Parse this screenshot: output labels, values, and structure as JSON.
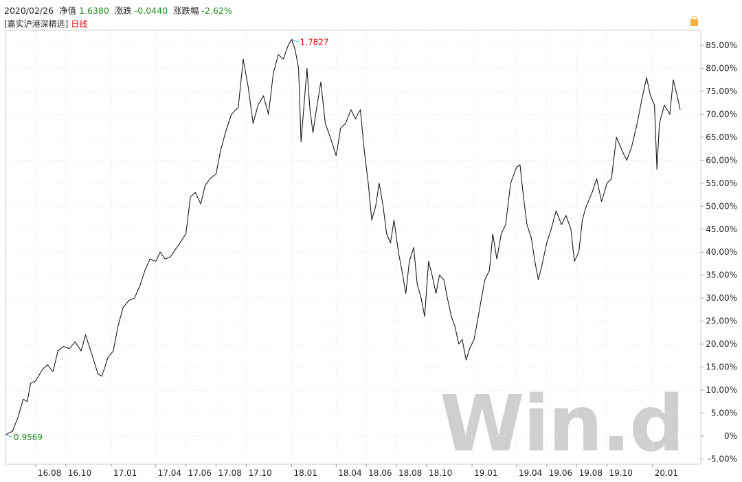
{
  "header": {
    "date": "2020/02/26",
    "nav_label": "净值",
    "nav_value": "1.6380",
    "change_label": "涨跌",
    "change_value": "-0.0440",
    "pct_label": "涨跌幅",
    "pct_value": "-2.62%"
  },
  "subheader": {
    "fund_name": "[嘉实沪港深精选]",
    "period": "日线"
  },
  "watermark": "Win.d",
  "colors": {
    "line": "#1a1a1a",
    "grid": "#e6e6e6",
    "green": "#1a8a1a",
    "red": "#e0000a"
  },
  "icons": {
    "lock": "lock-icon"
  },
  "chart_data": {
    "type": "line",
    "ylim": [
      -5,
      90
    ],
    "yticks": [
      -5,
      0,
      5,
      10,
      15,
      20,
      25,
      30,
      35,
      40,
      45,
      50,
      55,
      60,
      65,
      70,
      75,
      80,
      85
    ],
    "ytick_labels": [
      "-5.00%",
      "0%",
      "5.00%",
      "10.00%",
      "15.00%",
      "20.00%",
      "25.00%",
      "30.00%",
      "35.00%",
      "40.00%",
      "45.00%",
      "50.00%",
      "55.00%",
      "60.00%",
      "65.00%",
      "70.00%",
      "75.00%",
      "80.00%",
      "85.00%"
    ],
    "xtick_labels": [
      "16.08",
      "16.10",
      "17.01",
      "17.04",
      "17.06",
      "17.08",
      "17.10",
      "18.01",
      "18.04",
      "18.06",
      "18.08",
      "18.10",
      "19.01",
      "19.04",
      "19.06",
      "19.08",
      "19.10",
      "20.01"
    ],
    "xtick_dates": [
      "2016-08-01",
      "2016-10-01",
      "2017-01-01",
      "2017-04-01",
      "2017-06-01",
      "2017-08-01",
      "2017-10-01",
      "2018-01-01",
      "2018-04-01",
      "2018-06-01",
      "2018-08-01",
      "2018-10-01",
      "2019-01-01",
      "2019-04-01",
      "2019-06-01",
      "2019-08-01",
      "2019-10-01",
      "2020-01-01"
    ],
    "annotations": [
      {
        "label": "1.7827",
        "date": "2018-01-01",
        "value": 86.3,
        "color": "#e0000a"
      },
      {
        "label": "0.9569",
        "date": "2016-06-01",
        "value": 0.3,
        "color": "#1a8a1a"
      }
    ],
    "series": [
      {
        "points": [
          [
            "2016-06-01",
            0.3
          ],
          [
            "2016-06-15",
            1.0
          ],
          [
            "2016-06-26",
            4.0
          ],
          [
            "2016-07-07",
            8.0
          ],
          [
            "2016-07-15",
            7.5
          ],
          [
            "2016-07-22",
            11.5
          ],
          [
            "2016-08-01",
            12.0
          ],
          [
            "2016-08-15",
            14.5
          ],
          [
            "2016-08-25",
            15.5
          ],
          [
            "2016-09-05",
            14.0
          ],
          [
            "2016-09-15",
            18.5
          ],
          [
            "2016-09-26",
            19.5
          ],
          [
            "2016-10-08",
            19.0
          ],
          [
            "2016-10-20",
            20.5
          ],
          [
            "2016-11-01",
            18.5
          ],
          [
            "2016-11-10",
            22.0
          ],
          [
            "2016-11-25",
            17.0
          ],
          [
            "2016-12-05",
            13.5
          ],
          [
            "2016-12-13",
            13.0
          ],
          [
            "2016-12-25",
            17.0
          ],
          [
            "2017-01-05",
            18.5
          ],
          [
            "2017-01-15",
            24.0
          ],
          [
            "2017-01-25",
            28.0
          ],
          [
            "2017-02-06",
            29.5
          ],
          [
            "2017-02-17",
            30.0
          ],
          [
            "2017-03-01",
            33.0
          ],
          [
            "2017-03-10",
            36.0
          ],
          [
            "2017-03-20",
            38.5
          ],
          [
            "2017-04-01",
            38.0
          ],
          [
            "2017-04-10",
            40.0
          ],
          [
            "2017-04-20",
            38.5
          ],
          [
            "2017-05-01",
            39.0
          ],
          [
            "2017-05-10",
            40.5
          ],
          [
            "2017-05-20",
            42.0
          ],
          [
            "2017-06-01",
            44.0
          ],
          [
            "2017-06-10",
            52.0
          ],
          [
            "2017-06-20",
            53.0
          ],
          [
            "2017-07-01",
            50.5
          ],
          [
            "2017-07-10",
            54.5
          ],
          [
            "2017-07-20",
            56.0
          ],
          [
            "2017-08-01",
            57.0
          ],
          [
            "2017-08-10",
            62.0
          ],
          [
            "2017-08-20",
            66.0
          ],
          [
            "2017-09-01",
            70.0
          ],
          [
            "2017-09-15",
            71.5
          ],
          [
            "2017-09-25",
            82.0
          ],
          [
            "2017-10-05",
            76.0
          ],
          [
            "2017-10-15",
            68.0
          ],
          [
            "2017-10-25",
            72.0
          ],
          [
            "2017-11-05",
            74.0
          ],
          [
            "2017-11-15",
            70.0
          ],
          [
            "2017-11-25",
            79.0
          ],
          [
            "2017-12-05",
            83.0
          ],
          [
            "2017-12-15",
            82.0
          ],
          [
            "2017-12-25",
            85.0
          ],
          [
            "2018-01-01",
            86.3
          ],
          [
            "2018-01-08",
            84.0
          ],
          [
            "2018-01-15",
            80.0
          ],
          [
            "2018-01-20",
            64.0
          ],
          [
            "2018-01-26",
            72.0
          ],
          [
            "2018-02-01",
            80.0
          ],
          [
            "2018-02-07",
            71.0
          ],
          [
            "2018-02-13",
            66.0
          ],
          [
            "2018-02-20",
            71.0
          ],
          [
            "2018-03-01",
            77.0
          ],
          [
            "2018-03-10",
            68.0
          ],
          [
            "2018-03-20",
            65.0
          ],
          [
            "2018-04-01",
            61.0
          ],
          [
            "2018-04-10",
            67.0
          ],
          [
            "2018-04-20",
            68.0
          ],
          [
            "2018-05-01",
            71.0
          ],
          [
            "2018-05-10",
            69.0
          ],
          [
            "2018-05-20",
            71.0
          ],
          [
            "2018-05-28",
            62.0
          ],
          [
            "2018-06-05",
            55.0
          ],
          [
            "2018-06-12",
            47.0
          ],
          [
            "2018-06-20",
            50.0
          ],
          [
            "2018-06-27",
            55.0
          ],
          [
            "2018-07-05",
            50.0
          ],
          [
            "2018-07-12",
            44.0
          ],
          [
            "2018-07-20",
            42.0
          ],
          [
            "2018-07-27",
            47.0
          ],
          [
            "2018-08-05",
            40.0
          ],
          [
            "2018-08-12",
            36.0
          ],
          [
            "2018-08-20",
            31.0
          ],
          [
            "2018-08-27",
            38.0
          ],
          [
            "2018-09-05",
            41.0
          ],
          [
            "2018-09-12",
            33.0
          ],
          [
            "2018-09-20",
            30.0
          ],
          [
            "2018-09-27",
            26.0
          ],
          [
            "2018-10-05",
            38.0
          ],
          [
            "2018-10-12",
            35.0
          ],
          [
            "2018-10-20",
            31.0
          ],
          [
            "2018-10-27",
            35.0
          ],
          [
            "2018-11-05",
            34.0
          ],
          [
            "2018-11-12",
            30.0
          ],
          [
            "2018-11-20",
            26.0
          ],
          [
            "2018-11-27",
            24.0
          ],
          [
            "2018-12-05",
            20.0
          ],
          [
            "2018-12-12",
            21.0
          ],
          [
            "2018-12-20",
            16.5
          ],
          [
            "2018-12-27",
            19.0
          ],
          [
            "2019-01-05",
            21.0
          ],
          [
            "2019-01-12",
            25.0
          ],
          [
            "2019-01-20",
            30.0
          ],
          [
            "2019-01-27",
            34.0
          ],
          [
            "2019-02-05",
            36.0
          ],
          [
            "2019-02-12",
            44.0
          ],
          [
            "2019-02-20",
            38.5
          ],
          [
            "2019-03-01",
            44.0
          ],
          [
            "2019-03-10",
            46.0
          ],
          [
            "2019-03-20",
            55.0
          ],
          [
            "2019-04-01",
            58.5
          ],
          [
            "2019-04-08",
            59.0
          ],
          [
            "2019-04-15",
            52.0
          ],
          [
            "2019-04-22",
            46.0
          ],
          [
            "2019-05-01",
            43.0
          ],
          [
            "2019-05-08",
            38.0
          ],
          [
            "2019-05-15",
            34.0
          ],
          [
            "2019-05-22",
            37.0
          ],
          [
            "2019-06-01",
            42.0
          ],
          [
            "2019-06-10",
            45.0
          ],
          [
            "2019-06-20",
            49.0
          ],
          [
            "2019-07-01",
            46.0
          ],
          [
            "2019-07-10",
            48.0
          ],
          [
            "2019-07-20",
            45.0
          ],
          [
            "2019-07-27",
            38.0
          ],
          [
            "2019-08-05",
            40.0
          ],
          [
            "2019-08-12",
            47.0
          ],
          [
            "2019-08-20",
            50.0
          ],
          [
            "2019-09-01",
            53.0
          ],
          [
            "2019-09-10",
            56.0
          ],
          [
            "2019-09-20",
            51.0
          ],
          [
            "2019-10-01",
            55.0
          ],
          [
            "2019-10-10",
            56.0
          ],
          [
            "2019-10-20",
            65.0
          ],
          [
            "2019-11-01",
            62.0
          ],
          [
            "2019-11-10",
            60.0
          ],
          [
            "2019-11-20",
            63.0
          ],
          [
            "2019-12-01",
            68.0
          ],
          [
            "2019-12-10",
            73.0
          ],
          [
            "2019-12-20",
            78.0
          ],
          [
            "2019-12-28",
            74.0
          ],
          [
            "2020-01-05",
            72.0
          ],
          [
            "2020-01-10",
            58.0
          ],
          [
            "2020-01-15",
            68.0
          ],
          [
            "2020-01-25",
            72.0
          ],
          [
            "2020-02-05",
            70.0
          ],
          [
            "2020-02-12",
            77.5
          ],
          [
            "2020-02-20",
            74.0
          ],
          [
            "2020-02-26",
            71.0
          ]
        ]
      }
    ]
  }
}
